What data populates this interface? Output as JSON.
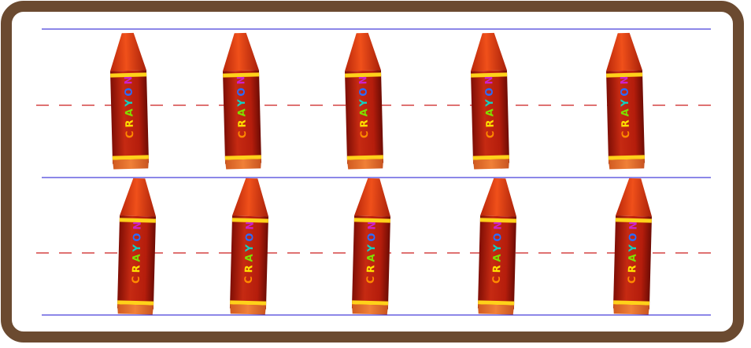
{
  "colors": {
    "frame": "#6b4a30",
    "rule_line": "#1a0fd0",
    "dash_line": "#cc1f1f",
    "crayon_body": "#b41c0c",
    "crayon_tip": "#e03a10",
    "crayon_band": "#ffd21a",
    "crayon_base": "#e8682a"
  },
  "crayon": {
    "label": "CRAYON",
    "letter_colors": [
      "#ff8a00",
      "#ffe000",
      "#7fe000",
      "#12d0c0",
      "#2a6cff",
      "#cc22cc"
    ]
  },
  "rows": [
    {
      "count": 5
    },
    {
      "count": 5
    }
  ]
}
